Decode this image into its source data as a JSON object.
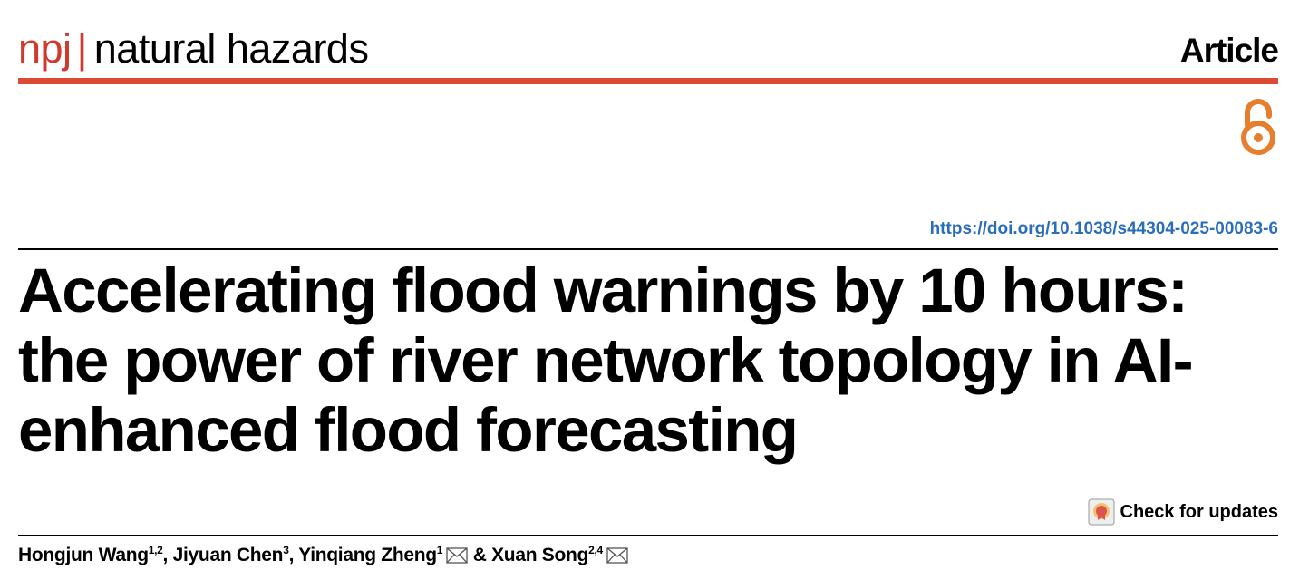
{
  "header": {
    "journal_prefix": "npj",
    "separator": "|",
    "journal_name": "natural hazards",
    "article_type": "Article"
  },
  "doi": "https://doi.org/10.1038/s44304-025-00083-6",
  "title_lines": [
    "Accelerating flood warnings by 10 hours:",
    "the power of river network topology in AI-",
    "enhanced flood forecasting"
  ],
  "check_updates": "Check for updates",
  "authors": [
    {
      "name": "Hongjun Wang",
      "affiliations": "1,2",
      "corresponding": false
    },
    {
      "name": "Jiyuan Chen",
      "affiliations": "3",
      "corresponding": false
    },
    {
      "name": "Yinqiang Zheng",
      "affiliations": "1",
      "corresponding": true
    },
    {
      "name": "Xuan Song",
      "affiliations": "2,4",
      "corresponding": true
    }
  ],
  "author_separators": [
    ", ",
    ", ",
    " & "
  ]
}
